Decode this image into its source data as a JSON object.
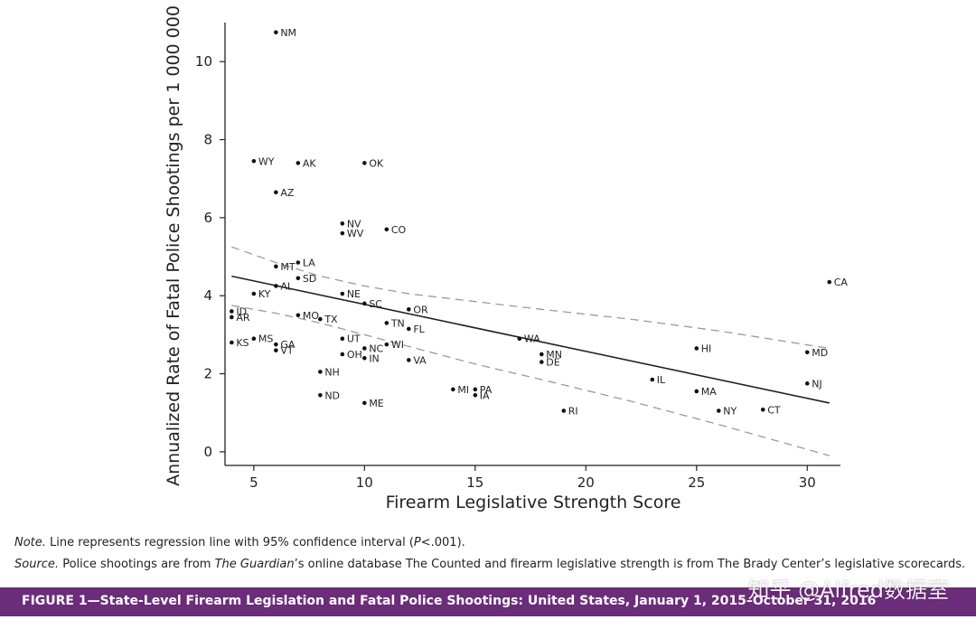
{
  "chart_data": {
    "type": "scatter",
    "xlabel": "Firearm Legislative Strength Score",
    "ylabel": "Annualized Rate of Fatal Police Shootings per 1 000 000",
    "xlim": [
      3.7,
      31.5
    ],
    "ylim": [
      -0.35,
      11.0
    ],
    "xticks": [
      5,
      10,
      15,
      20,
      25,
      30
    ],
    "yticks": [
      0,
      2,
      4,
      6,
      8,
      10
    ],
    "grid": false,
    "regression": {
      "x": [
        4,
        31
      ],
      "y": [
        4.5,
        1.25
      ]
    },
    "ci_upper": [
      [
        4,
        5.25
      ],
      [
        6,
        4.85
      ],
      [
        8,
        4.5
      ],
      [
        10,
        4.25
      ],
      [
        12,
        4.05
      ],
      [
        15,
        3.85
      ],
      [
        18,
        3.65
      ],
      [
        22,
        3.4
      ],
      [
        26,
        3.1
      ],
      [
        31,
        2.65
      ]
    ],
    "ci_lower": [
      [
        4,
        3.75
      ],
      [
        6,
        3.55
      ],
      [
        8,
        3.3
      ],
      [
        10,
        3.0
      ],
      [
        12,
        2.7
      ],
      [
        15,
        2.25
      ],
      [
        18,
        1.85
      ],
      [
        22,
        1.3
      ],
      [
        26,
        0.7
      ],
      [
        31,
        -0.1
      ]
    ],
    "points": [
      {
        "label": "NM",
        "x": 6,
        "y": 10.75
      },
      {
        "label": "WY",
        "x": 5,
        "y": 7.45
      },
      {
        "label": "AK",
        "x": 7,
        "y": 7.4
      },
      {
        "label": "OK",
        "x": 10,
        "y": 7.4
      },
      {
        "label": "AZ",
        "x": 6,
        "y": 6.65
      },
      {
        "label": "NV",
        "x": 9,
        "y": 5.85
      },
      {
        "label": "WV",
        "x": 9,
        "y": 5.6
      },
      {
        "label": "CO",
        "x": 11,
        "y": 5.7
      },
      {
        "label": "MT",
        "x": 6,
        "y": 4.75
      },
      {
        "label": "LA",
        "x": 7,
        "y": 4.85
      },
      {
        "label": "SD",
        "x": 7,
        "y": 4.45
      },
      {
        "label": "AL",
        "x": 6,
        "y": 4.25
      },
      {
        "label": "KY",
        "x": 5,
        "y": 4.05
      },
      {
        "label": "NE",
        "x": 9,
        "y": 4.05
      },
      {
        "label": "SC",
        "x": 10,
        "y": 3.8
      },
      {
        "label": "ID",
        "x": 4,
        "y": 3.6
      },
      {
        "label": "AR",
        "x": 4,
        "y": 3.45
      },
      {
        "label": "OR",
        "x": 12,
        "y": 3.65
      },
      {
        "label": "MO",
        "x": 7,
        "y": 3.5
      },
      {
        "label": "TX",
        "x": 8,
        "y": 3.4
      },
      {
        "label": "TN",
        "x": 11,
        "y": 3.3
      },
      {
        "label": "FL",
        "x": 12,
        "y": 3.15
      },
      {
        "label": "WA",
        "x": 17,
        "y": 2.9
      },
      {
        "label": "CA",
        "x": 31,
        "y": 4.35
      },
      {
        "label": "KS",
        "x": 4,
        "y": 2.8
      },
      {
        "label": "MS",
        "x": 5,
        "y": 2.9
      },
      {
        "label": "GA",
        "x": 6,
        "y": 2.75
      },
      {
        "label": "VT",
        "x": 6,
        "y": 2.6
      },
      {
        "label": "UT",
        "x": 9,
        "y": 2.9
      },
      {
        "label": "NC",
        "x": 10,
        "y": 2.65
      },
      {
        "label": "WI",
        "x": 11,
        "y": 2.75
      },
      {
        "label": "OH",
        "x": 9,
        "y": 2.5
      },
      {
        "label": "IN",
        "x": 10,
        "y": 2.4
      },
      {
        "label": "VA",
        "x": 12,
        "y": 2.35
      },
      {
        "label": "MN",
        "x": 18,
        "y": 2.5
      },
      {
        "label": "DE",
        "x": 18,
        "y": 2.3
      },
      {
        "label": "HI",
        "x": 25,
        "y": 2.65
      },
      {
        "label": "MD",
        "x": 30,
        "y": 2.55
      },
      {
        "label": "NH",
        "x": 8,
        "y": 2.05
      },
      {
        "label": "IL",
        "x": 23,
        "y": 1.85
      },
      {
        "label": "NJ",
        "x": 30,
        "y": 1.75
      },
      {
        "label": "MI",
        "x": 14,
        "y": 1.6
      },
      {
        "label": "PA",
        "x": 15,
        "y": 1.6
      },
      {
        "label": "IA",
        "x": 15,
        "y": 1.45
      },
      {
        "label": "MA",
        "x": 25,
        "y": 1.55
      },
      {
        "label": "ND",
        "x": 8,
        "y": 1.45
      },
      {
        "label": "ME",
        "x": 10,
        "y": 1.25
      },
      {
        "label": "RI",
        "x": 19,
        "y": 1.05
      },
      {
        "label": "NY",
        "x": 26,
        "y": 1.05
      },
      {
        "label": "CT",
        "x": 28,
        "y": 1.08
      }
    ]
  },
  "notes": {
    "note_prefix": "Note.",
    "note_text": " Line represents regression line with 95% confidence interval (",
    "note_p": "P",
    "note_end": "<.001).",
    "source_prefix": "Source.",
    "source_text1": " Police shootings are from ",
    "source_guardian": "The Guardian",
    "source_text2": "’s online database The Counted and firearm legislative strength is from The Brady Center’s legislative scorecards."
  },
  "figure_caption": "FIGURE 1—State-Level Firearm Legislation and Fatal Police Shootings: United States, January 1, 2015–October 31, 2016",
  "watermark": "知乎 @Alfred数据室",
  "colors": {
    "caption_bar": "#6b2c7a",
    "ci_line": "#9a9a9a",
    "regression_line": "#222222"
  }
}
